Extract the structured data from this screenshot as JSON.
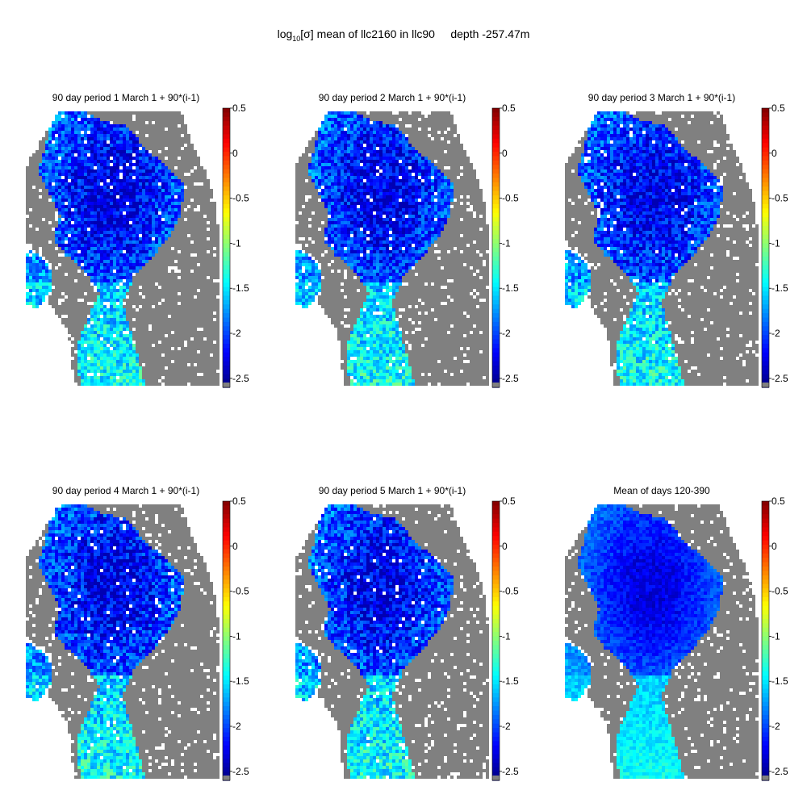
{
  "figure": {
    "title_prefix": "log",
    "title_sub": "10",
    "title_rest": "[σ] mean of llc2160 in llc90     depth -257.47m"
  },
  "chart_data": [
    {
      "type": "heatmap",
      "title": "90 day period 1 March 1 + 90*(i-1)",
      "colorbar": {
        "ticks": [
          "0.5",
          "0",
          "-0.5",
          "-1",
          "-1.5",
          "-2",
          "-2.5"
        ],
        "range": [
          -2.6,
          0.5
        ],
        "colormap": "jet"
      },
      "land_color": "#808080"
    },
    {
      "type": "heatmap",
      "title": "90 day period 2 March 1 + 90*(i-1)",
      "colorbar": {
        "ticks": [
          "0.5",
          "0",
          "-0.5",
          "-1",
          "-1.5",
          "-2",
          "-2.5"
        ],
        "range": [
          -2.6,
          0.5
        ],
        "colormap": "jet"
      },
      "land_color": "#808080"
    },
    {
      "type": "heatmap",
      "title": "90 day period 3 March 1 + 90*(i-1)",
      "colorbar": {
        "ticks": [
          "0.5",
          "0",
          "-0.5",
          "-1",
          "-1.5",
          "-2",
          "-2.5"
        ],
        "range": [
          -2.6,
          0.5
        ],
        "colormap": "jet"
      },
      "land_color": "#808080"
    },
    {
      "type": "heatmap",
      "title": "90 day period 4 March 1 + 90*(i-1)",
      "colorbar": {
        "ticks": [
          "0.5",
          "0",
          "-0.5",
          "-1",
          "-1.5",
          "-2",
          "-2.5"
        ],
        "range": [
          -2.6,
          0.5
        ],
        "colormap": "jet"
      },
      "land_color": "#808080"
    },
    {
      "type": "heatmap",
      "title": "90 day period 5 March 1 + 90*(i-1)",
      "colorbar": {
        "ticks": [
          "0.5",
          "0",
          "-0.5",
          "-1",
          "-1.5",
          "-2",
          "-2.5"
        ],
        "range": [
          -2.6,
          0.5
        ],
        "colormap": "jet"
      },
      "land_color": "#808080"
    },
    {
      "type": "heatmap",
      "title": "Mean of days 120-390",
      "colorbar": {
        "ticks": [
          "0.5",
          "0",
          "-0.5",
          "-1",
          "-1.5",
          "-2",
          "-2.5"
        ],
        "range": [
          -2.6,
          0.5
        ],
        "colormap": "jet"
      },
      "land_color": "#808080"
    }
  ]
}
